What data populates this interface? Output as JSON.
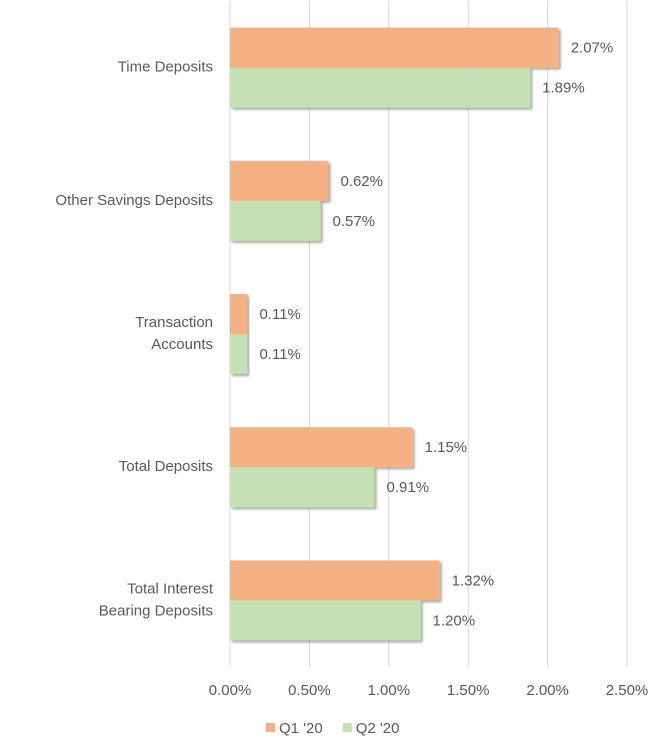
{
  "chart_data": {
    "type": "hbar",
    "categories": [
      "Time Deposits",
      "Other Savings Deposits",
      "Transaction\nAccounts",
      "Total Deposits",
      "Total Interest\nBearing Deposits"
    ],
    "series": [
      {
        "name": "Q1 '20",
        "color": "#f4b183",
        "values": [
          2.07,
          0.62,
          0.11,
          1.15,
          1.32
        ],
        "value_labels": [
          "2.07%",
          "0.62%",
          "0.11%",
          "1.15%",
          "1.32%"
        ]
      },
      {
        "name": "Q2 '20",
        "color": "#c5e0b4",
        "values": [
          1.89,
          0.57,
          0.11,
          0.91,
          1.2
        ],
        "value_labels": [
          "1.89%",
          "0.57%",
          "0.11%",
          "0.91%",
          "1.20%"
        ]
      }
    ],
    "xlim": [
      0,
      2.5
    ],
    "xticks": [
      {
        "value": 0,
        "label": "0.00%"
      },
      {
        "value": 0.5,
        "label": "0.50%"
      },
      {
        "value": 1,
        "label": "1.00%"
      },
      {
        "value": 1.5,
        "label": "1.50%"
      },
      {
        "value": 2,
        "label": "2.00%"
      },
      {
        "value": 2.5,
        "label": "2.50%"
      }
    ],
    "grid": true,
    "legend": "bottom"
  }
}
